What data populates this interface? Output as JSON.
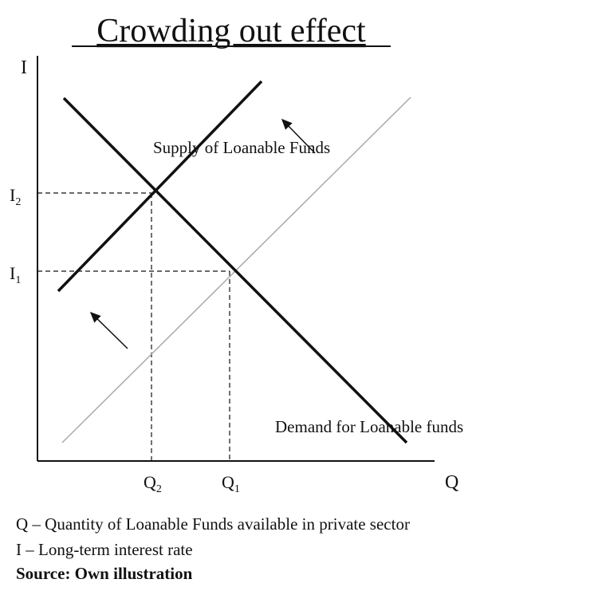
{
  "title": "Crowding out effect",
  "axes": {
    "y": "I",
    "x": "Q"
  },
  "y_labels": [
    {
      "letter": "I",
      "sub": "2"
    },
    {
      "letter": "I",
      "sub": "1"
    }
  ],
  "x_labels": [
    {
      "letter": "Q",
      "sub": "2"
    },
    {
      "letter": "Q",
      "sub": "1"
    }
  ],
  "curves": {
    "supply": "Supply of Loanable Funds",
    "demand": "Demand for Loanable funds"
  },
  "legend": [
    "Q – Quantity of Loanable Funds available in private sector",
    "I – Long-term interest rate"
  ],
  "source": "Source: Own illustration"
}
